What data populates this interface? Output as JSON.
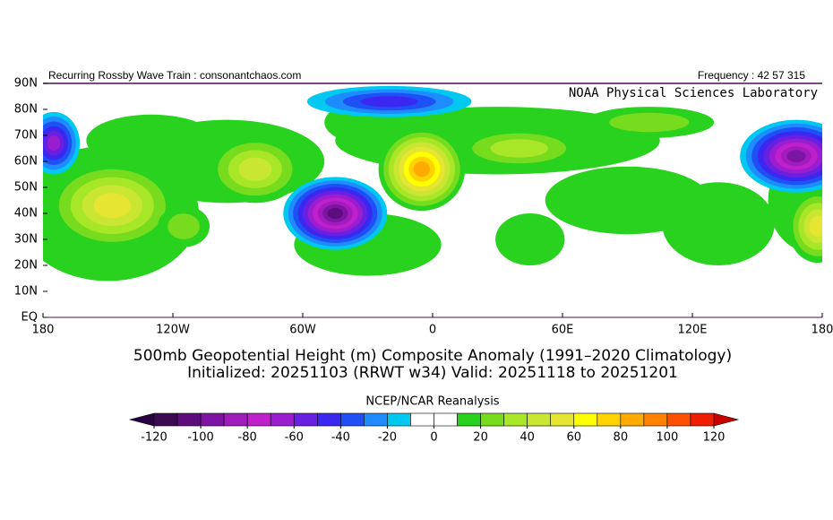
{
  "header": {
    "left": "Recurring Rossby Wave Train : consonantchaos.com",
    "right": "Frequency : 42 57 315",
    "lab": "NOAA Physical Sciences Laboratory"
  },
  "map": {
    "lat_labels": [
      "90N",
      "80N",
      "70N",
      "60N",
      "50N",
      "40N",
      "30N",
      "20N",
      "10N",
      "EQ"
    ],
    "lon_labels": [
      "180",
      "120W",
      "60W",
      "0",
      "60E",
      "120E",
      "180"
    ]
  },
  "title": [
    "500mb Geopotential Height (m) Composite Anomaly (1991–2020 Climatology)",
    "Initialized: 20251103 (RRWT w34) Valid: 20251118 to 20251201"
  ],
  "colorbar": {
    "label": "NCEP/NCAR Reanalysis",
    "ticks": [
      -120,
      -100,
      -80,
      -60,
      -40,
      -20,
      0,
      20,
      40,
      60,
      80,
      100,
      120
    ],
    "colors": [
      "#3c0a50",
      "#5c0c7c",
      "#7e14a4",
      "#a01cbc",
      "#c020cc",
      "#9a1ed0",
      "#6a20e0",
      "#3a28f0",
      "#1e50f5",
      "#1e8cff",
      "#00c8f0",
      "#ffffff",
      "#ffffff",
      "#28d21e",
      "#78dc1e",
      "#a8e628",
      "#c8e632",
      "#e6e632",
      "#ffff00",
      "#ffd200",
      "#ffaa00",
      "#ff8200",
      "#ff5000",
      "#f01e00"
    ],
    "under_color": "#2a0040",
    "over_color": "#c80000"
  }
}
